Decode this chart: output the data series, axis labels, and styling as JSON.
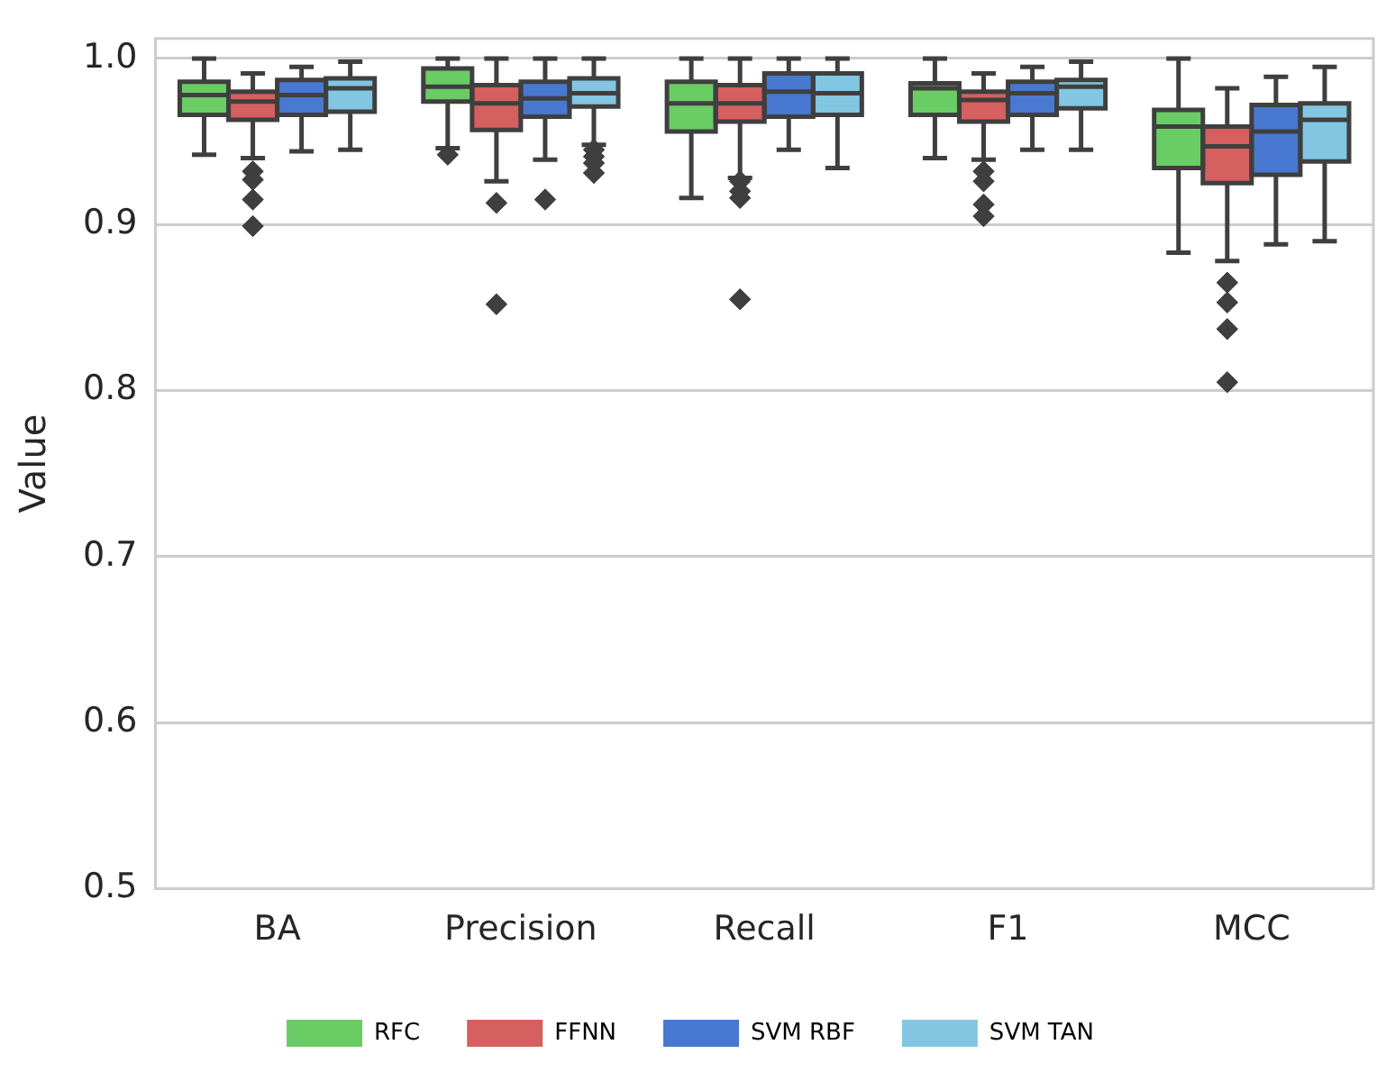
{
  "chart_data": {
    "type": "box",
    "ylabel": "Value",
    "categories": [
      "BA",
      "Precision",
      "Recall",
      "F1",
      "MCC"
    ],
    "ylim": [
      0.5,
      1.012
    ],
    "yticks": [
      0.5,
      0.6,
      0.7,
      0.8,
      0.9,
      {
        "value": 1.0,
        "label": "1.0"
      }
    ],
    "grid": "y",
    "legend": "bottom",
    "marker": "diamond",
    "series": [
      {
        "name": "RFC",
        "color": "#6acc64",
        "boxes": [
          {
            "low": 0.942,
            "q1": 0.966,
            "median": 0.978,
            "q3": 0.986,
            "high": 1.0
          },
          {
            "low": 0.946,
            "q1": 0.974,
            "median": 0.983,
            "q3": 0.994,
            "high": 1.0,
            "outliers": [
              0.942
            ]
          },
          {
            "low": 0.916,
            "q1": 0.956,
            "median": 0.973,
            "q3": 0.986,
            "high": 1.0
          },
          {
            "low": 0.94,
            "q1": 0.966,
            "median": 0.982,
            "q3": 0.985,
            "high": 1.0
          },
          {
            "low": 0.883,
            "q1": 0.934,
            "median": 0.959,
            "q3": 0.969,
            "high": 1.0
          }
        ]
      },
      {
        "name": "FFNN",
        "color": "#d65f5f",
        "boxes": [
          {
            "low": 0.94,
            "q1": 0.963,
            "median": 0.974,
            "q3": 0.98,
            "high": 0.991,
            "outliers": [
              0.932,
              0.927,
              0.915,
              0.899
            ]
          },
          {
            "low": 0.926,
            "q1": 0.957,
            "median": 0.973,
            "q3": 0.984,
            "high": 1.0,
            "outliers": [
              0.913,
              0.852
            ]
          },
          {
            "low": 0.928,
            "q1": 0.962,
            "median": 0.973,
            "q3": 0.984,
            "high": 1.0,
            "outliers": [
              0.926,
              0.92,
              0.916,
              0.855
            ]
          },
          {
            "low": 0.939,
            "q1": 0.962,
            "median": 0.975,
            "q3": 0.98,
            "high": 0.991,
            "outliers": [
              0.932,
              0.926,
              0.912,
              0.905
            ]
          },
          {
            "low": 0.878,
            "q1": 0.925,
            "median": 0.947,
            "q3": 0.959,
            "high": 0.982,
            "outliers": [
              0.865,
              0.853,
              0.837,
              0.805
            ]
          }
        ]
      },
      {
        "name": "SVM RBF",
        "color": "#4878d0",
        "boxes": [
          {
            "low": 0.944,
            "q1": 0.966,
            "median": 0.978,
            "q3": 0.987,
            "high": 0.995
          },
          {
            "low": 0.939,
            "q1": 0.965,
            "median": 0.976,
            "q3": 0.986,
            "high": 1.0,
            "outliers": [
              0.915
            ]
          },
          {
            "low": 0.945,
            "q1": 0.965,
            "median": 0.98,
            "q3": 0.991,
            "high": 1.0
          },
          {
            "low": 0.945,
            "q1": 0.966,
            "median": 0.979,
            "q3": 0.986,
            "high": 0.995
          },
          {
            "low": 0.888,
            "q1": 0.93,
            "median": 0.956,
            "q3": 0.972,
            "high": 0.989
          }
        ]
      },
      {
        "name": "SVM TAN",
        "color": "#82c6e2",
        "boxes": [
          {
            "low": 0.945,
            "q1": 0.968,
            "median": 0.982,
            "q3": 0.988,
            "high": 0.998
          },
          {
            "low": 0.948,
            "q1": 0.971,
            "median": 0.979,
            "q3": 0.988,
            "high": 1.0,
            "outliers": [
              0.945,
              0.941,
              0.937,
              0.931
            ]
          },
          {
            "low": 0.934,
            "q1": 0.966,
            "median": 0.979,
            "q3": 0.991,
            "high": 1.0
          },
          {
            "low": 0.945,
            "q1": 0.97,
            "median": 0.983,
            "q3": 0.987,
            "high": 0.998
          },
          {
            "low": 0.89,
            "q1": 0.938,
            "median": 0.963,
            "q3": 0.973,
            "high": 0.995
          }
        ]
      }
    ]
  }
}
